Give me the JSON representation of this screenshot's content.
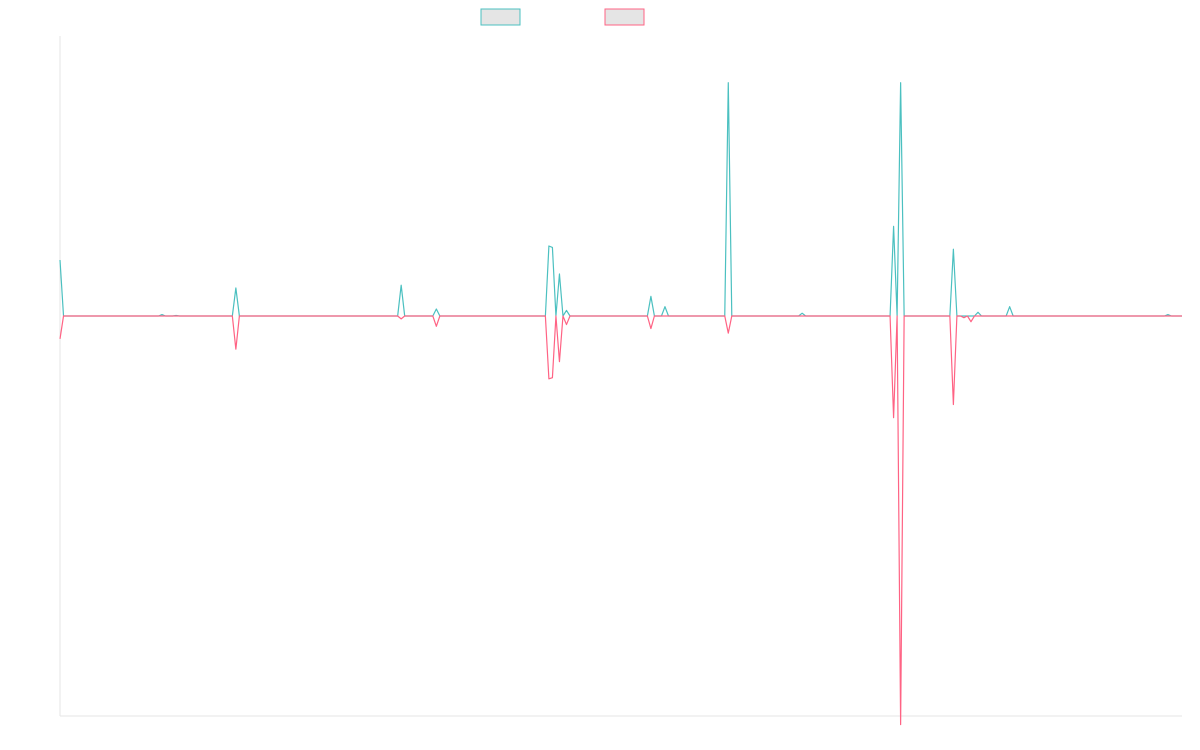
{
  "chart_data": {
    "type": "line",
    "legend_position": "top-center",
    "grid": false,
    "x_points": 320,
    "ylim": [
      -700,
      600
    ],
    "series": [
      {
        "stroke": "#4bc0c0",
        "fill": "#e5e5e5",
        "sign": "positive",
        "points": [
          [
            0,
            120
          ],
          [
            1,
            0
          ],
          [
            28,
            0
          ],
          [
            29,
            3
          ],
          [
            30,
            0
          ],
          [
            32,
            0
          ],
          [
            33,
            1
          ],
          [
            34,
            0
          ],
          [
            49,
            0
          ],
          [
            50,
            60
          ],
          [
            51,
            0
          ],
          [
            96,
            0
          ],
          [
            97,
            66
          ],
          [
            98,
            0
          ],
          [
            106,
            0
          ],
          [
            107,
            15
          ],
          [
            108,
            0
          ],
          [
            138,
            0
          ],
          [
            139,
            150
          ],
          [
            140,
            147
          ],
          [
            141,
            0
          ],
          [
            142,
            90
          ],
          [
            143,
            0
          ],
          [
            144,
            12
          ],
          [
            145,
            0
          ],
          [
            167,
            0
          ],
          [
            168,
            42
          ],
          [
            169,
            0
          ],
          [
            171,
            0
          ],
          [
            172,
            20
          ],
          [
            173,
            0
          ],
          [
            189,
            0
          ],
          [
            190,
            500
          ],
          [
            191,
            0
          ],
          [
            210,
            0
          ],
          [
            211,
            6
          ],
          [
            212,
            0
          ],
          [
            236,
            0
          ],
          [
            237,
            192
          ],
          [
            238,
            0
          ],
          [
            239,
            500
          ],
          [
            240,
            0
          ],
          [
            253,
            0
          ],
          [
            254,
            143
          ],
          [
            255,
            0
          ],
          [
            260,
            0
          ],
          [
            261,
            8
          ],
          [
            262,
            0
          ],
          [
            269,
            0
          ],
          [
            270,
            20
          ],
          [
            271,
            0
          ],
          [
            314,
            0
          ],
          [
            315,
            3
          ],
          [
            316,
            0
          ],
          [
            319,
            0
          ]
        ]
      },
      {
        "stroke": "#ff6384",
        "fill": "#e5e5e5",
        "sign": "negative",
        "points": [
          [
            0,
            -40
          ],
          [
            1,
            0
          ],
          [
            49,
            0
          ],
          [
            50,
            -58
          ],
          [
            51,
            0
          ],
          [
            96,
            0
          ],
          [
            97,
            -5
          ],
          [
            98,
            0
          ],
          [
            106,
            0
          ],
          [
            107,
            -18
          ],
          [
            108,
            0
          ],
          [
            138,
            0
          ],
          [
            139,
            -110
          ],
          [
            140,
            -108
          ],
          [
            141,
            0
          ],
          [
            142,
            -80
          ],
          [
            143,
            0
          ],
          [
            144,
            -15
          ],
          [
            145,
            0
          ],
          [
            167,
            0
          ],
          [
            168,
            -22
          ],
          [
            169,
            0
          ],
          [
            189,
            0
          ],
          [
            190,
            -30
          ],
          [
            191,
            0
          ],
          [
            236,
            0
          ],
          [
            237,
            -178
          ],
          [
            238,
            0
          ],
          [
            239,
            -715
          ],
          [
            240,
            0
          ],
          [
            253,
            0
          ],
          [
            254,
            -155
          ],
          [
            255,
            0
          ],
          [
            256,
            0
          ],
          [
            257,
            -3
          ],
          [
            258,
            0
          ],
          [
            259,
            -10
          ],
          [
            260,
            0
          ],
          [
            319,
            0
          ]
        ]
      }
    ]
  }
}
